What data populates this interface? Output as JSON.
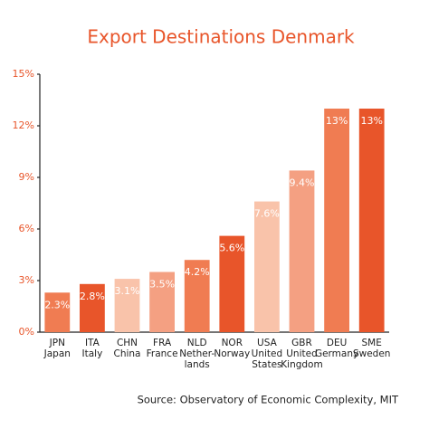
{
  "chart_data": {
    "type": "bar",
    "title": "Export Destinations Denmark",
    "categories": [
      "JPN",
      "ITA",
      "CHN",
      "FRA",
      "NLD",
      "NOR",
      "USA",
      "GBR",
      "DEU",
      "SME"
    ],
    "category_names": [
      [
        "Japan"
      ],
      [
        "Italy"
      ],
      [
        "China"
      ],
      [
        "France"
      ],
      [
        "Nether-",
        "lands"
      ],
      [
        "Norway"
      ],
      [
        "United",
        "States"
      ],
      [
        "United",
        "Kingdom"
      ],
      [
        "Germany"
      ],
      [
        "Sweden"
      ]
    ],
    "values": [
      2.3,
      2.8,
      3.1,
      3.5,
      4.2,
      5.6,
      7.6,
      9.4,
      13,
      13
    ],
    "value_labels": [
      "2.3%",
      "2.8%",
      "3.1%",
      "3.5%",
      "4.2%",
      "5.6%",
      "7.6%",
      "9.4%",
      "13%",
      "13%"
    ],
    "colors": [
      "#f07c52",
      "#e8552a",
      "#f9c3aa",
      "#f4a082",
      "#f07c52",
      "#e8552a",
      "#f9c3aa",
      "#f4a082",
      "#f07c52",
      "#e8552a"
    ],
    "ylim": [
      0,
      15
    ],
    "yticks": [
      {
        "value": 0,
        "label": "0%"
      },
      {
        "value": 3,
        "label": "3%"
      },
      {
        "value": 6,
        "label": "6%"
      },
      {
        "value": 9,
        "label": "9%"
      },
      {
        "value": 12,
        "label": "12%"
      },
      {
        "value": 15,
        "label": "15%"
      }
    ],
    "source": "Source: Observatory of Economic Complexity, MIT"
  }
}
